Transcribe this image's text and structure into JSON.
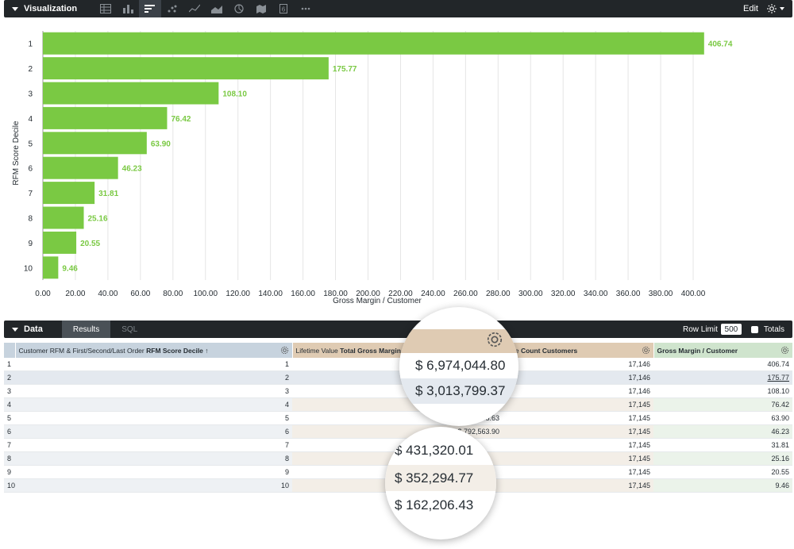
{
  "visualization": {
    "title": "Visualization",
    "edit_label": "Edit",
    "toolbar_icons": [
      "table-icon",
      "column-chart-icon",
      "bar-chart-icon",
      "scatter-icon",
      "line-chart-icon",
      "area-chart-icon",
      "pie-chart-icon",
      "map-icon",
      "single-value-icon",
      "more-icon"
    ]
  },
  "chart_data": {
    "type": "bar",
    "orientation": "horizontal",
    "categories": [
      "1",
      "2",
      "3",
      "4",
      "5",
      "6",
      "7",
      "8",
      "9",
      "10"
    ],
    "values": [
      406.74,
      175.77,
      108.1,
      76.42,
      63.9,
      46.23,
      31.81,
      25.16,
      20.55,
      9.46
    ],
    "value_labels": [
      "406.74",
      "175.77",
      "108.10",
      "76.42",
      "63.90",
      "46.23",
      "31.81",
      "25.16",
      "20.55",
      "9.46"
    ],
    "xlabel": "Gross Margin / Customer",
    "ylabel": "RFM Score Decile",
    "xlim": [
      0,
      400
    ],
    "xticks": [
      "0.00",
      "20.00",
      "40.00",
      "60.00",
      "80.00",
      "100.00",
      "120.00",
      "140.00",
      "160.00",
      "180.00",
      "200.00",
      "220.00",
      "240.00",
      "260.00",
      "280.00",
      "300.00",
      "320.00",
      "340.00",
      "360.00",
      "380.00",
      "400.00"
    ],
    "grid": true,
    "colors": {
      "bar": "#7ac943",
      "label": "#7ac943"
    }
  },
  "data_panel": {
    "title": "Data",
    "tabs": [
      "Results",
      "SQL"
    ],
    "row_limit_label": "Row Limit",
    "row_limit_value": "500",
    "totals_label": "Totals"
  },
  "table": {
    "headers": [
      {
        "prefix": "Customer RFM & First/Second/Last Order ",
        "bold": "RFM Score Decile ↑"
      },
      {
        "prefix": "Lifetime Value ",
        "bold": "Total Gross Margin"
      },
      {
        "prefix": "alue ",
        "bold": "Count Customers"
      },
      {
        "prefix": "",
        "bold": "Gross Margin / Customer"
      }
    ],
    "rows": [
      {
        "n": "1",
        "decile": "1",
        "tgm": "",
        "count": "17,146",
        "gmc": "406.74"
      },
      {
        "n": "2",
        "decile": "2",
        "tgm": "",
        "count": "17,146",
        "gmc": "175.77"
      },
      {
        "n": "3",
        "decile": "3",
        "tgm": "",
        "count": "17,146",
        "gmc": "108.10"
      },
      {
        "n": "4",
        "decile": "4",
        "tgm": "",
        "count": "17,145",
        "gmc": "76.42"
      },
      {
        "n": "5",
        "decile": "5",
        "tgm": "$ 1,095,568.63",
        "count": "17,145",
        "gmc": "63.90"
      },
      {
        "n": "6",
        "decile": "6",
        "tgm": "$ 792,563.90",
        "count": "17,145",
        "gmc": "46.23"
      },
      {
        "n": "7",
        "decile": "7",
        "tgm": "",
        "count": "17,145",
        "gmc": "31.81"
      },
      {
        "n": "8",
        "decile": "8",
        "tgm": "",
        "count": "17,145",
        "gmc": "25.16"
      },
      {
        "n": "9",
        "decile": "9",
        "tgm": "",
        "count": "17,145",
        "gmc": "20.55"
      },
      {
        "n": "10",
        "decile": "10",
        "tgm": "",
        "count": "17,145",
        "gmc": "9.46"
      }
    ]
  },
  "magnifier_top": [
    "$ 6,974,044.80",
    "$ 3,013,799.37"
  ],
  "magnifier_bottom": [
    "$ 431,320.01",
    "$ 352,294.77",
    "$ 162,206.43"
  ]
}
